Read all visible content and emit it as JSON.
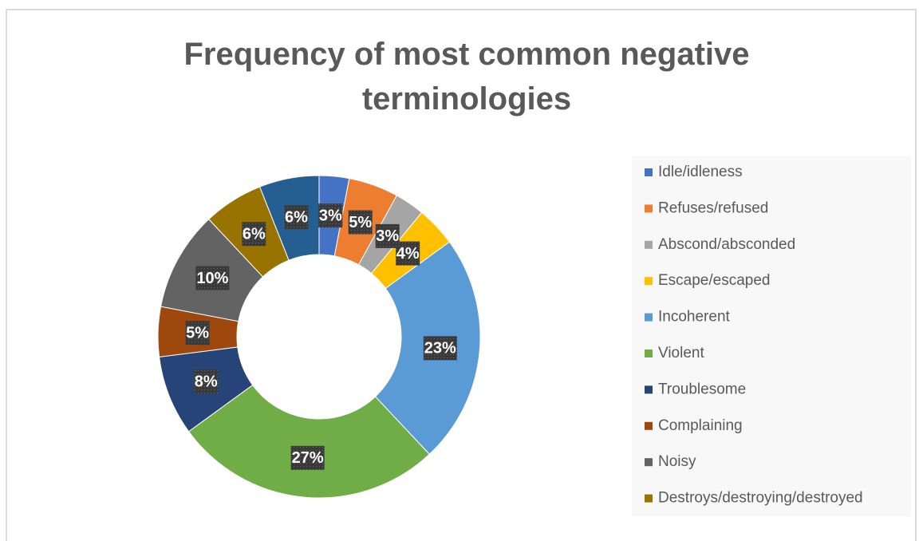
{
  "chart_data": {
    "type": "donut",
    "title": "Frequency of most common negative terminologies",
    "categories": [
      "Idle/idleness",
      "Refuses/refused",
      "Abscond/absconded",
      "Escape/escaped",
      "Incoherent",
      "Violent",
      "Troublesome",
      "Complaining",
      "Noisy",
      "Destroys/destroying/destroyed",
      null
    ],
    "values": [
      3,
      5,
      3,
      4,
      23,
      27,
      8,
      5,
      10,
      6,
      6
    ],
    "value_labels": [
      "3%",
      "5%",
      "3%",
      "4%",
      "23%",
      "27%",
      "8%",
      "5%",
      "10%",
      "6%",
      "6%"
    ],
    "colors": [
      "#4472c4",
      "#ed7d31",
      "#a5a5a5",
      "#ffc000",
      "#5b9bd5",
      "#70ad47",
      "#264478",
      "#9e480e",
      "#636363",
      "#997300",
      "#255e91"
    ],
    "legend": "right"
  }
}
